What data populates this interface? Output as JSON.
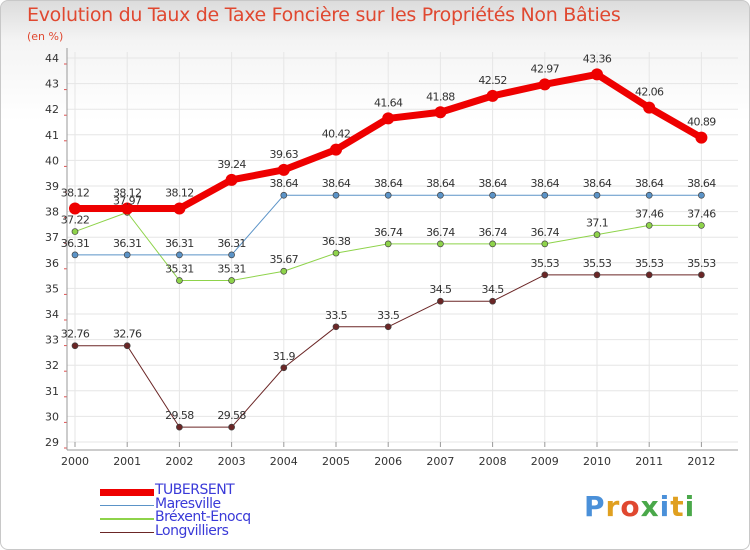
{
  "title": "Evolution du Taux de Taxe Foncière sur les Propriétés Non Bâties",
  "unit_label": "(en %)",
  "logo_text": "Proxiti",
  "logo_letters": [
    {
      "ch": "P",
      "color": "#4a90d9"
    },
    {
      "ch": "r",
      "color": "#e0a020"
    },
    {
      "ch": "o",
      "color": "#e04830"
    },
    {
      "ch": "x",
      "color": "#4aa84a"
    },
    {
      "ch": "i",
      "color": "#4a90d9"
    },
    {
      "ch": "t",
      "color": "#e0a020"
    },
    {
      "ch": "i",
      "color": "#4aa84a"
    }
  ],
  "chart_data": {
    "type": "line",
    "title": "Evolution du Taux de Taxe Foncière sur les Propriétés Non Bâties",
    "ylabel": "(en %)",
    "xlabel": "",
    "ylim": [
      29,
      44
    ],
    "yticks": [
      29,
      30,
      31,
      32,
      33,
      34,
      35,
      36,
      37,
      38,
      39,
      40,
      41,
      42,
      43,
      44
    ],
    "categories": [
      "2000",
      "2001",
      "2002",
      "2003",
      "2004",
      "2005",
      "2006",
      "2007",
      "2008",
      "2009",
      "2010",
      "2011",
      "2012"
    ],
    "legend_position": "bottom-left",
    "grid": true,
    "series": [
      {
        "name": "Longvilliers",
        "color": "#6b2626",
        "width": 1,
        "values": [
          32.76,
          32.76,
          29.58,
          29.58,
          31.9,
          33.5,
          33.5,
          34.5,
          34.5,
          35.53,
          35.53,
          35.53,
          35.53
        ],
        "labels": [
          "32.76",
          "32.76",
          "29.58",
          "29.58",
          "31.9",
          "33.5",
          "33.5",
          "34.5",
          "34.5",
          "35.53",
          "35.53",
          "35.53",
          "35.53"
        ]
      },
      {
        "name": "Bréxent-Enocq",
        "color": "#8ed34a",
        "width": 1,
        "values": [
          37.22,
          37.97,
          35.31,
          35.31,
          35.67,
          36.38,
          36.74,
          36.74,
          36.74,
          36.74,
          37.1,
          37.46,
          37.46
        ],
        "labels": [
          "37.22",
          "37.97",
          "35.31",
          "35.31",
          "35.67",
          "36.38",
          "36.74",
          "36.74",
          "36.74",
          "36.74",
          "37.1",
          "37.46",
          "37.46"
        ]
      },
      {
        "name": "Maresville",
        "color": "#5b93c7",
        "width": 1,
        "values": [
          36.31,
          36.31,
          36.31,
          36.31,
          38.64,
          38.64,
          38.64,
          38.64,
          38.64,
          38.64,
          38.64,
          38.64,
          38.64
        ],
        "labels": [
          "36.31",
          "36.31",
          "36.31",
          "36.31",
          "38.64",
          "38.64",
          "38.64",
          "38.64",
          "38.64",
          "38.64",
          "38.64",
          "38.64",
          "38.64"
        ]
      },
      {
        "name": "TUBERSENT",
        "color": "#ee0000",
        "width": 7,
        "values": [
          38.12,
          38.12,
          38.12,
          39.24,
          39.63,
          40.42,
          41.64,
          41.88,
          42.52,
          42.97,
          43.36,
          42.06,
          40.89
        ],
        "labels": [
          "38.12",
          "38.12",
          "38.12",
          "39.24",
          "39.63",
          "40.42",
          "41.64",
          "41.88",
          "42.52",
          "42.97",
          "43.36",
          "42.06",
          "40.89"
        ]
      }
    ],
    "legend_order": [
      "TUBERSENT",
      "Maresville",
      "Bréxent-Enocq",
      "Longvilliers"
    ]
  }
}
